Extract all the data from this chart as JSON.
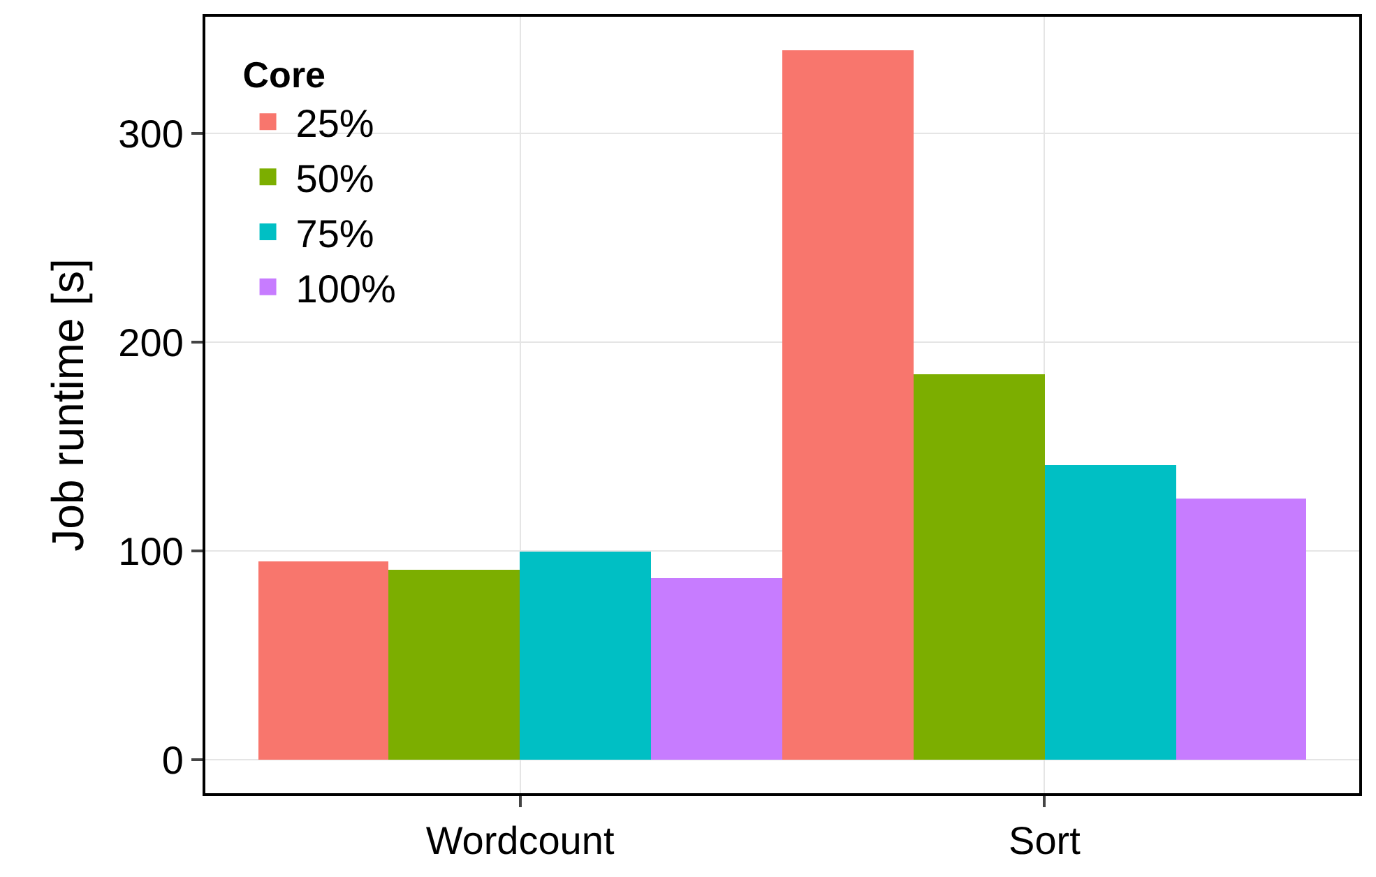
{
  "chart_data": {
    "type": "bar",
    "ylabel": "Job runtime [s]",
    "legend_title": "Core",
    "categories": [
      "Wordcount",
      "Sort"
    ],
    "series": [
      {
        "name": "25%",
        "color": "#f8766d",
        "values": [
          95,
          340
        ]
      },
      {
        "name": "50%",
        "color": "#7cae00",
        "values": [
          91,
          185
        ]
      },
      {
        "name": "75%",
        "color": "#00bfc4",
        "values": [
          100,
          141
        ]
      },
      {
        "name": "100%",
        "color": "#c77cff",
        "values": [
          87,
          125
        ]
      }
    ],
    "ylim": [
      -16,
      356
    ],
    "yticks": [
      0,
      100,
      200,
      300
    ],
    "grid": true,
    "legend": "top left"
  }
}
